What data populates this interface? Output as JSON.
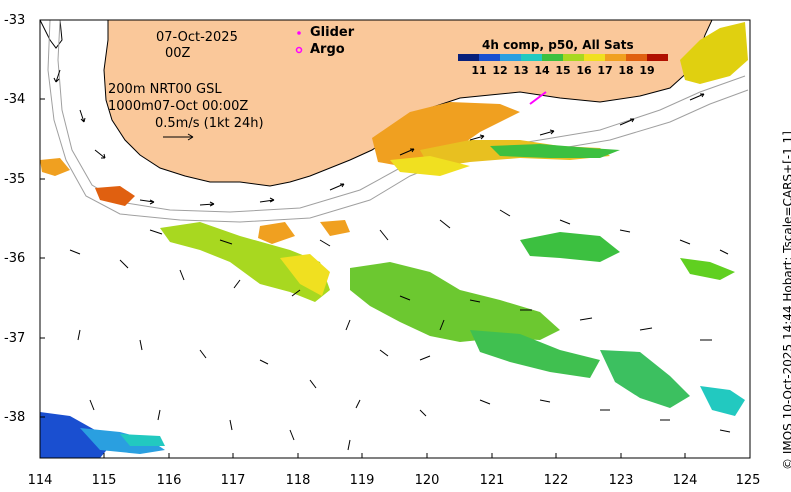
{
  "map": {
    "date_line1": "07-Oct-2025",
    "date_line2": "00Z",
    "depth_line1": "200m  NRT00 GSL",
    "depth_line2": "1000m07-Oct 00:00Z",
    "scale_label": "0.5m/s (1kt 24h)",
    "legend": {
      "glider_label": "Glider",
      "argo_label": "Argo",
      "colorbar_title": "4h comp, p50, All Sats",
      "colorbar_ticks": [
        "11",
        "12",
        "13",
        "14",
        "15",
        "16",
        "17",
        "18",
        "19"
      ],
      "colorbar_colors": [
        "#08207a",
        "#1a4fd0",
        "#2a9fe0",
        "#22c9c0",
        "#3cc040",
        "#a8d820",
        "#f0e020",
        "#f0a020",
        "#e06010",
        "#b01000"
      ]
    },
    "y_ticks": [
      "-33",
      "-34",
      "-35",
      "-36",
      "-37",
      "-38"
    ],
    "x_ticks": [
      "114",
      "115",
      "116",
      "117",
      "118",
      "119",
      "120",
      "121",
      "122",
      "123",
      "124",
      "125"
    ],
    "credit": "© IMOS 10-Oct-2025 14:44 Hobart; Tscale=CARS+[-1 1]",
    "colors": {
      "land": "#fac89a",
      "coast": "#000000",
      "isobath": "#a0a0a0",
      "glider": "#ff00ff",
      "argo": "#ff00ff"
    }
  }
}
